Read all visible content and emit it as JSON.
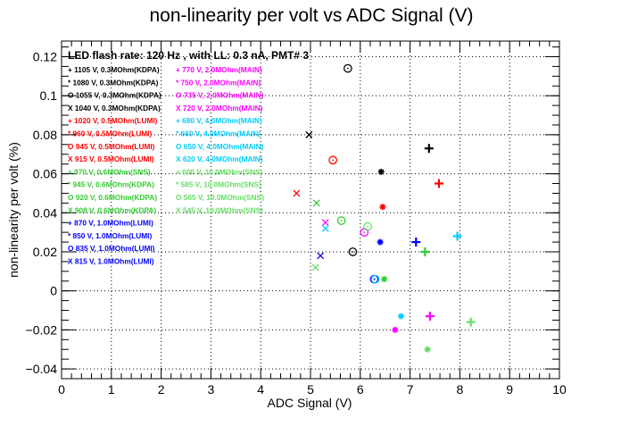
{
  "chart_data": {
    "type": "scatter",
    "title": "non-linearity per volt vs ADC Signal (V)",
    "xlabel": "ADC Signal (V)",
    "ylabel": "non-linearity per volt (%)",
    "xlim": [
      0,
      10
    ],
    "ylim": [
      -0.045,
      0.128
    ],
    "xticks": [
      "0",
      "1",
      "2",
      "3",
      "4",
      "5",
      "6",
      "7",
      "8",
      "9",
      "10"
    ],
    "yticks": [
      "−0.04",
      "−0.02",
      "0",
      "0.02",
      "0.04",
      "0.06",
      "0.08",
      "0.1",
      "0.12"
    ],
    "grid": true,
    "legend_header": "LED flash rate: 120 Hz , with LL: 0.3 nA, PMT# 3",
    "legend_placement": "top-left",
    "colors": {
      "black": "#000000",
      "red": "#ff0000",
      "green": "#33cc33",
      "blue": "#0000ff",
      "magenta": "#ff00ff",
      "cyan": "#00ccff",
      "lightgreen": "#66dd66"
    },
    "series": [
      {
        "name": "+ 1105 V, 0.3MOhm(KDPA)",
        "color": "black",
        "marker": "plus",
        "points": [
          [
            7.38,
            0.073
          ]
        ]
      },
      {
        "name": "* 1080 V, 0.3MOhm(KDPA)",
        "color": "black",
        "marker": "star",
        "points": [
          [
            6.42,
            0.061
          ]
        ]
      },
      {
        "name": "O 1055 V, 0.3MOhm(KDPA)",
        "color": "black",
        "marker": "circle",
        "points": [
          [
            5.75,
            0.114
          ],
          [
            5.85,
            0.02
          ]
        ]
      },
      {
        "name": "X 1040 V, 0.3MOhm(KDPA)",
        "color": "black",
        "marker": "cross",
        "points": [
          [
            4.97,
            0.08
          ]
        ]
      },
      {
        "name": "+ 1020 V, 0.5MOhm(LUMI)",
        "color": "red",
        "marker": "plus",
        "points": [
          [
            7.58,
            0.055
          ]
        ]
      },
      {
        "name": "* 960 V, 0.5MOhm(LUMI)",
        "color": "red",
        "marker": "star",
        "points": [
          [
            6.45,
            0.043
          ]
        ]
      },
      {
        "name": "O 945 V, 0.5MOhm(LUMI)",
        "color": "red",
        "marker": "circle",
        "points": [
          [
            5.45,
            0.067
          ]
        ]
      },
      {
        "name": "X 915 V, 0.5MOhm(LUMI)",
        "color": "red",
        "marker": "cross",
        "points": [
          [
            4.72,
            0.05
          ]
        ]
      },
      {
        "name": "+ 970 V, 0.6MOhm(SNS)",
        "color": "green",
        "marker": "plus",
        "points": [
          [
            7.3,
            0.02
          ]
        ]
      },
      {
        "name": "* 945 V, 0.6MOhm(KDPA)",
        "color": "green",
        "marker": "star",
        "points": [
          [
            6.48,
            0.006
          ]
        ]
      },
      {
        "name": "O 920 V, 0.6MOhm(KDPA)",
        "color": "green",
        "marker": "circle",
        "points": [
          [
            5.62,
            0.036
          ]
        ]
      },
      {
        "name": "X 908 V, 0.6MOhm(KDPA)",
        "color": "green",
        "marker": "cross",
        "points": [
          [
            5.12,
            0.045
          ]
        ]
      },
      {
        "name": "+ 870 V, 1.0MOhm(LUMI)",
        "color": "blue",
        "marker": "plus",
        "points": [
          [
            7.12,
            0.025
          ]
        ]
      },
      {
        "name": "* 850 V, 1.0MOhm(LUMI)",
        "color": "blue",
        "marker": "star",
        "points": [
          [
            6.4,
            0.025
          ]
        ]
      },
      {
        "name": "O 835 V, 1.0MOhm(LUMI)",
        "color": "blue",
        "marker": "circle",
        "points": [
          [
            6.28,
            0.006
          ]
        ]
      },
      {
        "name": "X 815 V, 1.0MOhm(LUMI)",
        "color": "blue",
        "marker": "cross",
        "points": [
          [
            5.2,
            0.018
          ]
        ]
      },
      {
        "name": "+ 770 V, 2.0MOhm(MAIN)",
        "color": "magenta",
        "marker": "plus",
        "points": [
          [
            7.4,
            -0.013
          ]
        ]
      },
      {
        "name": "* 750 V, 2.0MOhm(MAIN)",
        "color": "magenta",
        "marker": "star",
        "points": [
          [
            6.7,
            -0.02
          ]
        ]
      },
      {
        "name": "O 735 V, 2.0MOhm(MAIN)",
        "color": "magenta",
        "marker": "circle",
        "points": [
          [
            6.08,
            0.03
          ]
        ]
      },
      {
        "name": "X 720 V, 2.0MOhm(MAIN)",
        "color": "magenta",
        "marker": "cross",
        "points": [
          [
            5.3,
            0.035
          ]
        ]
      },
      {
        "name": "+ 680 V, 4.0MOhm(MAIN)",
        "color": "cyan",
        "marker": "plus",
        "points": [
          [
            7.95,
            0.028
          ]
        ]
      },
      {
        "name": "* 660 V, 4.0MOhm(MAIN)",
        "color": "cyan",
        "marker": "star",
        "points": [
          [
            6.82,
            -0.013
          ]
        ]
      },
      {
        "name": "O 650 V, 4.0MOhm(MAIN)",
        "color": "cyan",
        "marker": "circle",
        "points": [
          [
            6.3,
            0.006
          ]
        ]
      },
      {
        "name": "X 620 V, 4.0MOhm(MAIN)",
        "color": "cyan",
        "marker": "cross",
        "points": [
          [
            5.3,
            0.032
          ]
        ]
      },
      {
        "name": "+ 600 V, 10.0MOhm(SNS)",
        "color": "lightgreen",
        "marker": "plus",
        "points": [
          [
            8.22,
            -0.016
          ]
        ]
      },
      {
        "name": "* 585 V, 10.0MOhm(SNS)",
        "color": "lightgreen",
        "marker": "star",
        "points": [
          [
            7.35,
            -0.03
          ]
        ]
      },
      {
        "name": "O 565 V, 10.0MOhm(SNS)",
        "color": "lightgreen",
        "marker": "circle",
        "points": [
          [
            6.15,
            0.033
          ]
        ]
      },
      {
        "name": "X 545 V, 10.0MOhm(SNS)",
        "color": "lightgreen",
        "marker": "cross",
        "points": [
          [
            5.1,
            0.012
          ]
        ]
      }
    ]
  }
}
